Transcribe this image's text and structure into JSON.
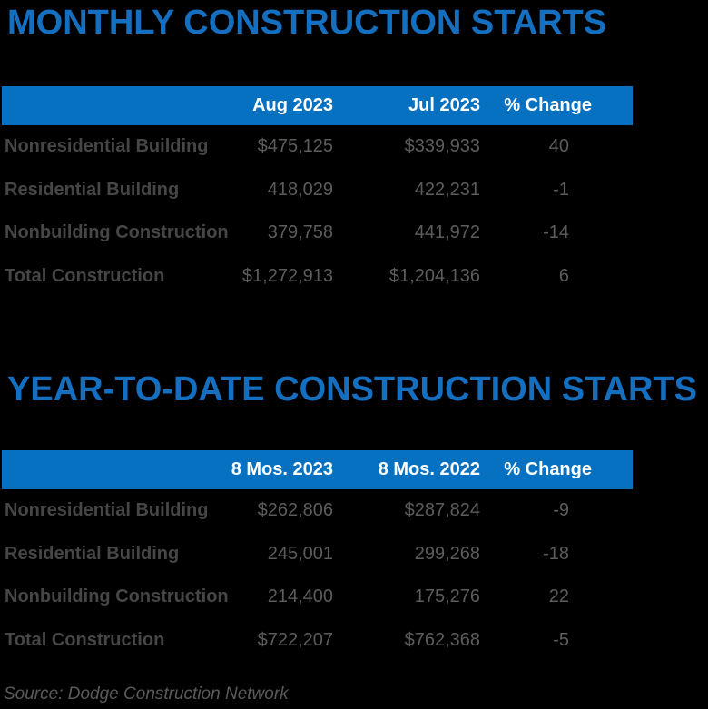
{
  "colors": {
    "background": "#000000",
    "title_blue": "#146FC0",
    "header_bar_blue": "#0771C1",
    "header_text": "#FFFFFF",
    "label_gray": "#464646",
    "number_gray": "#5C5C5C"
  },
  "chart_data": [
    {
      "type": "table",
      "title": "MONTHLY CONSTRUCTION STARTS",
      "columns": [
        "",
        "Aug 2023",
        "Jul 2023",
        "% Change"
      ],
      "rows": [
        {
          "label": "Nonresidential Building",
          "values": [
            "$475,125",
            "$339,933",
            "40"
          ],
          "values_numeric": [
            475125,
            339933,
            40
          ]
        },
        {
          "label": "Residential Building",
          "values": [
            "418,029",
            "422,231",
            "-1"
          ],
          "values_numeric": [
            418029,
            422231,
            -1
          ]
        },
        {
          "label": "Nonbuilding Construction",
          "values": [
            "379,758",
            "441,972",
            "-14"
          ],
          "values_numeric": [
            379758,
            441972,
            -14
          ]
        },
        {
          "label": "Total Construction",
          "values": [
            "$1,272,913",
            "$1,204,136",
            "6"
          ],
          "values_numeric": [
            1272913,
            1204136,
            6
          ]
        }
      ]
    },
    {
      "type": "table",
      "title": "YEAR-TO-DATE CONSTRUCTION STARTS",
      "columns": [
        "",
        "8 Mos. 2023",
        "8 Mos. 2022",
        "% Change"
      ],
      "rows": [
        {
          "label": "Nonresidential Building",
          "values": [
            "$262,806",
            "$287,824",
            "-9"
          ],
          "values_numeric": [
            262806,
            287824,
            -9
          ]
        },
        {
          "label": "Residential Building",
          "values": [
            "245,001",
            "299,268",
            "-18"
          ],
          "values_numeric": [
            245001,
            299268,
            -18
          ]
        },
        {
          "label": "Nonbuilding Construction",
          "values": [
            "214,400",
            "175,276",
            "22"
          ],
          "values_numeric": [
            214400,
            175276,
            22
          ]
        },
        {
          "label": "Total Construction",
          "values": [
            "$722,207",
            "$762,368",
            "-5"
          ],
          "values_numeric": [
            722207,
            762368,
            -5
          ]
        }
      ]
    }
  ],
  "source_note": "Source: Dodge Construction Network"
}
